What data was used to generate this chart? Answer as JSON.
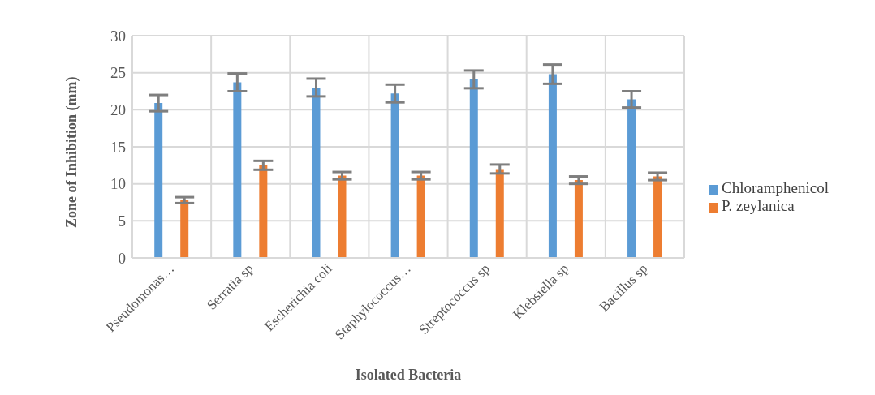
{
  "chart_data": {
    "type": "bar",
    "xlabel": "Isolated Bacteria",
    "ylabel": "Zone of Inhibition (mm)",
    "categories": [
      "Pseudomonas…",
      "Serratia sp",
      "Escherichia coli",
      "Staphylococcus…",
      "Streptococcus sp",
      "Klebsiella sp",
      "Bacillus sp"
    ],
    "series": [
      {
        "name": "Chloramphenicol",
        "color": "#5b9bd5",
        "values": [
          20.9,
          23.7,
          23.0,
          22.2,
          24.1,
          24.8,
          21.4
        ],
        "errors": [
          1.1,
          1.2,
          1.2,
          1.2,
          1.2,
          1.3,
          1.1
        ]
      },
      {
        "name": "P. zeylanica",
        "color": "#ed7d31",
        "values": [
          7.8,
          12.5,
          11.1,
          11.1,
          12.0,
          10.5,
          11.0
        ],
        "errors": [
          0.4,
          0.6,
          0.5,
          0.5,
          0.6,
          0.5,
          0.5
        ]
      }
    ],
    "ylim": [
      0,
      30
    ],
    "yticks": [
      0,
      5,
      10,
      15,
      20,
      25,
      30
    ],
    "grid": true,
    "legend": "right"
  }
}
